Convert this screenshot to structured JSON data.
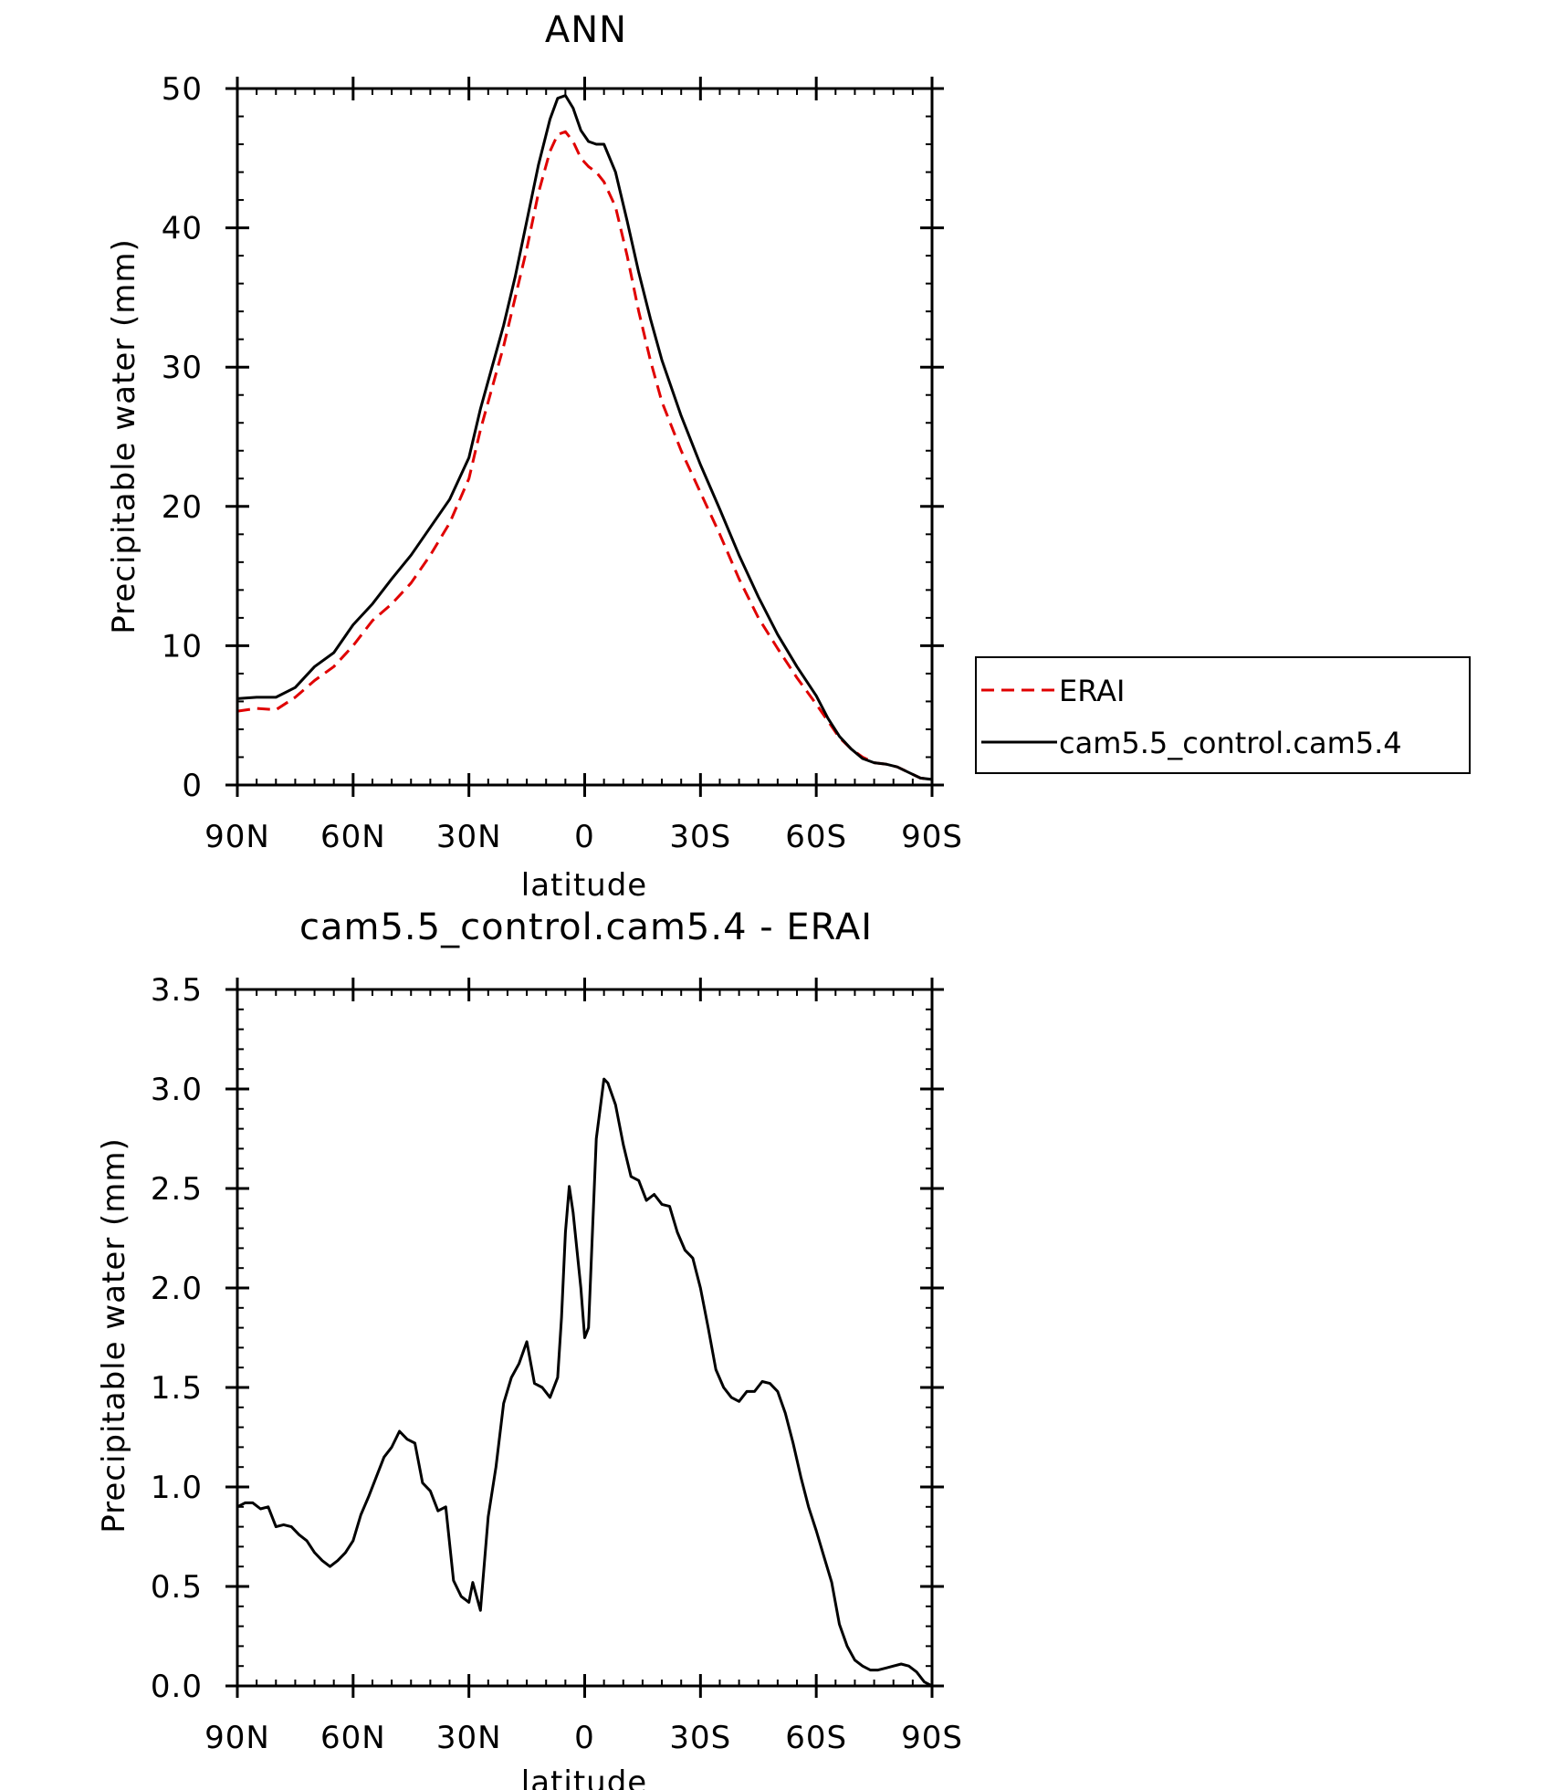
{
  "chart_data": [
    {
      "type": "line",
      "title": "ANN",
      "xlabel": "latitude",
      "ylabel": "Precipitable water (mm)",
      "xlim": [
        90,
        -90
      ],
      "ylim": [
        0,
        50
      ],
      "x_ticks": [
        90,
        60,
        30,
        0,
        -30,
        -60,
        -90
      ],
      "x_tick_labels": [
        "90N",
        "60N",
        "30N",
        "0",
        "30S",
        "60S",
        "90S"
      ],
      "y_ticks": [
        0,
        10,
        20,
        30,
        40,
        50
      ],
      "y_tick_labels": [
        "0",
        "10",
        "20",
        "30",
        "40",
        "50"
      ],
      "x_minor_step": 5,
      "y_minor_step": 2,
      "legend_placement": "right",
      "series": [
        {
          "name": "ERAI",
          "color": "#e00000",
          "dash": "dashed",
          "x": [
            90,
            85,
            80,
            75,
            70,
            65,
            60,
            55,
            50,
            45,
            40,
            35,
            30,
            27,
            24,
            21,
            18,
            15,
            12,
            9,
            7,
            5,
            3,
            1,
            -1,
            -3,
            -5,
            -8,
            -11,
            -14,
            -17,
            -20,
            -25,
            -30,
            -35,
            -40,
            -45,
            -50,
            -55,
            -60,
            -63,
            -66,
            -69,
            -72,
            -75,
            -78,
            -81,
            -84,
            -87,
            -90
          ],
          "values": [
            5.3,
            5.5,
            5.4,
            6.3,
            7.5,
            8.5,
            10.0,
            11.8,
            13.0,
            14.5,
            16.5,
            18.8,
            22.0,
            25.5,
            28.5,
            31.5,
            35.0,
            38.5,
            42.5,
            45.5,
            46.7,
            46.9,
            46.2,
            45.0,
            44.4,
            44.0,
            43.3,
            41.5,
            38.0,
            34.0,
            30.5,
            27.5,
            24.0,
            21.0,
            18.0,
            14.8,
            12.0,
            9.8,
            7.7,
            5.8,
            4.6,
            3.4,
            2.6,
            2.0,
            1.6,
            1.5,
            1.3,
            0.9,
            0.5,
            0.4
          ]
        },
        {
          "name": "cam5.5_control.cam5.4",
          "color": "#000000",
          "dash": "solid",
          "x": [
            90,
            85,
            80,
            75,
            70,
            65,
            60,
            55,
            50,
            45,
            40,
            35,
            30,
            27,
            24,
            21,
            18,
            15,
            12,
            9,
            7,
            5,
            3,
            1,
            -1,
            -3,
            -5,
            -8,
            -11,
            -14,
            -17,
            -20,
            -25,
            -30,
            -35,
            -40,
            -45,
            -50,
            -55,
            -60,
            -63,
            -66,
            -69,
            -72,
            -75,
            -78,
            -81,
            -84,
            -87,
            -90
          ],
          "values": [
            6.2,
            6.3,
            6.3,
            7.0,
            8.5,
            9.5,
            11.5,
            13.0,
            14.8,
            16.5,
            18.5,
            20.5,
            23.5,
            27.0,
            30.0,
            33.0,
            36.5,
            40.5,
            44.5,
            47.8,
            49.3,
            49.5,
            48.6,
            47.0,
            46.2,
            46.0,
            46.0,
            44.0,
            40.5,
            36.8,
            33.5,
            30.5,
            26.5,
            23.0,
            19.8,
            16.5,
            13.5,
            10.8,
            8.5,
            6.4,
            4.8,
            3.5,
            2.6,
            1.9,
            1.6,
            1.5,
            1.3,
            0.9,
            0.5,
            0.4
          ]
        }
      ]
    },
    {
      "type": "line",
      "title": "cam5.5_control.cam5.4 - ERAI",
      "xlabel": "latitude",
      "ylabel": "Precipitable water (mm)",
      "xlim": [
        90,
        -90
      ],
      "ylim": [
        0,
        3.5
      ],
      "x_ticks": [
        90,
        60,
        30,
        0,
        -30,
        -60,
        -90
      ],
      "x_tick_labels": [
        "90N",
        "60N",
        "30N",
        "0",
        "30S",
        "60S",
        "90S"
      ],
      "y_ticks": [
        0,
        0.5,
        1.0,
        1.5,
        2.0,
        2.5,
        3.0,
        3.5
      ],
      "y_tick_labels": [
        "0.0",
        "0.5",
        "1.0",
        "1.5",
        "2.0",
        "2.5",
        "3.0",
        "3.5"
      ],
      "x_minor_step": 5,
      "y_minor_step": 0.1,
      "series": [
        {
          "color": "#000000",
          "dash": "solid",
          "x": [
            90,
            88,
            86,
            84,
            82,
            80,
            78,
            76,
            74,
            72,
            70,
            68,
            66,
            64,
            62,
            60,
            58,
            56,
            54,
            52,
            50,
            48,
            46,
            44,
            42,
            40,
            38,
            36,
            34,
            32,
            30,
            29,
            27,
            25,
            23,
            21,
            19,
            17,
            15,
            13,
            11,
            9,
            7,
            6,
            5,
            4,
            3,
            1,
            0,
            -1,
            -3,
            -5,
            -6,
            -8,
            -10,
            -12,
            -14,
            -16,
            -18,
            -20,
            -22,
            -24,
            -26,
            -28,
            -30,
            -32,
            -34,
            -36,
            -38,
            -40,
            -42,
            -44,
            -46,
            -48,
            -50,
            -52,
            -54,
            -56,
            -58,
            -60,
            -62,
            -64,
            -66,
            -68,
            -70,
            -72,
            -74,
            -76,
            -78,
            -80,
            -82,
            -84,
            -86,
            -88,
            -90
          ],
          "values": [
            0.9,
            0.92,
            0.92,
            0.89,
            0.9,
            0.8,
            0.81,
            0.8,
            0.76,
            0.73,
            0.67,
            0.63,
            0.6,
            0.63,
            0.67,
            0.73,
            0.86,
            0.95,
            1.05,
            1.15,
            1.2,
            1.28,
            1.24,
            1.22,
            1.02,
            0.98,
            0.88,
            0.9,
            0.53,
            0.45,
            0.42,
            0.52,
            0.38,
            0.85,
            1.1,
            1.42,
            1.55,
            1.62,
            1.73,
            1.52,
            1.5,
            1.45,
            1.55,
            1.85,
            2.28,
            2.51,
            2.38,
            2.0,
            1.75,
            1.8,
            2.75,
            3.05,
            3.03,
            2.92,
            2.72,
            2.56,
            2.54,
            2.44,
            2.47,
            2.42,
            2.41,
            2.28,
            2.19,
            2.15,
            2.0,
            1.8,
            1.59,
            1.5,
            1.45,
            1.43,
            1.48,
            1.48,
            1.53,
            1.52,
            1.48,
            1.37,
            1.22,
            1.05,
            0.9,
            0.78,
            0.65,
            0.52,
            0.31,
            0.2,
            0.13,
            0.1,
            0.08,
            0.08,
            0.09,
            0.1,
            0.11,
            0.1,
            0.07,
            0.02,
            0.0
          ]
        }
      ]
    }
  ]
}
